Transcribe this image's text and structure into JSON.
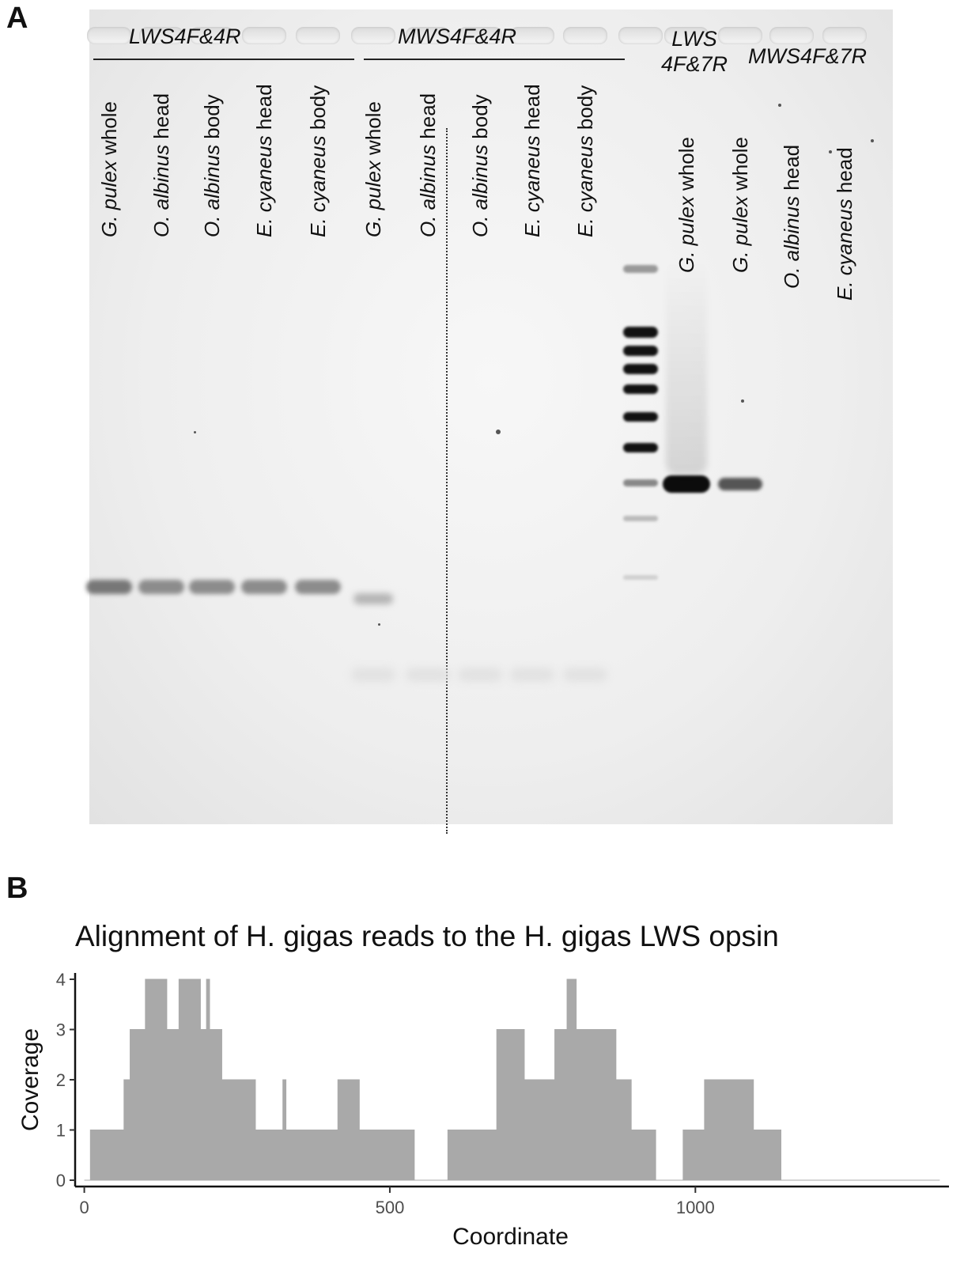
{
  "panel_a": {
    "letter": "A",
    "groups": [
      {
        "name": "LWS4F&4R"
      },
      {
        "name": "MWS4F&4R"
      },
      {
        "name": "LWS\n4F&7R"
      },
      {
        "name": "MWS4F&7R"
      }
    ],
    "lanes": [
      {
        "species": "G. pulex",
        "part": "whole"
      },
      {
        "species": "O. albinus",
        "part": "head"
      },
      {
        "species": "O. albinus",
        "part": "body"
      },
      {
        "species": "E. cyaneus",
        "part": "head"
      },
      {
        "species": "E. cyaneus",
        "part": "body"
      },
      {
        "species": "G. pulex",
        "part": "whole"
      },
      {
        "species": "O. albinus",
        "part": "head"
      },
      {
        "species": "O. albinus",
        "part": "body"
      },
      {
        "species": "E. cyaneus",
        "part": "head"
      },
      {
        "species": "E. cyaneus",
        "part": "body"
      },
      {
        "species": "G. pulex",
        "part": "whole"
      },
      {
        "species": "G. pulex",
        "part": "whole"
      },
      {
        "species": "O. albinus",
        "part": "head"
      },
      {
        "species": "E. cyaneus",
        "part": "head"
      }
    ]
  },
  "panel_b": {
    "letter": "B"
  },
  "chart_data": {
    "type": "area",
    "title": "Alignment of H. gigas reads to the H. gigas LWS opsin",
    "xlabel": "Coordinate",
    "ylabel": "Coverage",
    "xlim": [
      -15,
      1415
    ],
    "ylim": [
      0,
      4
    ],
    "xticks": [
      0,
      500,
      1000
    ],
    "yticks": [
      0,
      1,
      2,
      3,
      4
    ],
    "fill_color": "#a9a9a9",
    "grid": false,
    "x": [
      0,
      10,
      10,
      65,
      65,
      75,
      75,
      100,
      100,
      135,
      135,
      155,
      155,
      190,
      190,
      200,
      200,
      205,
      205,
      225,
      225,
      280,
      280,
      325,
      325,
      330,
      330,
      415,
      415,
      450,
      450,
      540,
      540,
      595,
      595,
      675,
      675,
      720,
      720,
      770,
      770,
      790,
      790,
      805,
      805,
      820,
      820,
      870,
      870,
      895,
      895,
      935,
      935,
      980,
      980,
      1015,
      1015,
      1095,
      1095,
      1140,
      1140,
      1400
    ],
    "y": [
      0,
      0,
      1,
      1,
      2,
      2,
      3,
      3,
      4,
      4,
      3,
      3,
      4,
      4,
      3,
      3,
      4,
      4,
      3,
      3,
      2,
      2,
      1,
      1,
      2,
      2,
      1,
      1,
      2,
      2,
      1,
      1,
      0,
      0,
      1,
      1,
      3,
      3,
      2,
      2,
      3,
      3,
      4,
      4,
      3,
      3,
      3,
      3,
      2,
      2,
      1,
      1,
      0,
      0,
      1,
      1,
      2,
      2,
      1,
      1,
      0,
      0
    ]
  }
}
